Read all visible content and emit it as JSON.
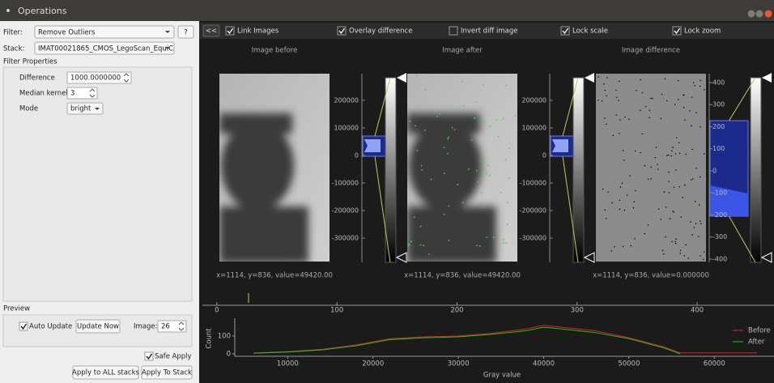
{
  "window": {
    "title": "Operations"
  },
  "filter": {
    "label": "Filter:",
    "value": "Remove Outliers",
    "help": "?"
  },
  "stack": {
    "label": "Stack:",
    "value": "IMAT00021865_CMOS_LegoScan_EquiC"
  },
  "filter_properties": {
    "title": "Filter Properties",
    "fields": [
      {
        "label": "Difference",
        "value": "1000.0000000"
      },
      {
        "label": "Median kernel",
        "value": "3"
      },
      {
        "label": "Mode",
        "value": "bright"
      }
    ]
  },
  "preview": {
    "title": "Preview",
    "auto_update": {
      "label": "Auto Update",
      "checked": true
    },
    "update_now": "Update Now",
    "image_label": "Image:",
    "image_value": "26"
  },
  "safe_apply": {
    "label": "Safe Apply",
    "checked": true
  },
  "buttons": [
    "Apply to ALL stacks",
    "Apply To Stack"
  ],
  "toolbar": {
    "collapse": "<<",
    "options": [
      {
        "label": "Link Images",
        "checked": true
      },
      {
        "label": "Overlay difference",
        "checked": true
      },
      {
        "label": "Invert diff image",
        "checked": false
      },
      {
        "label": "Lock scale",
        "checked": true
      },
      {
        "label": "Lock zoom",
        "checked": true
      }
    ]
  },
  "images": [
    {
      "title": "Image before",
      "position": "x=1114, y=836, value=49420.00",
      "scale": {
        "ylim": [
          -388000,
          282000
        ],
        "ticks": [
          200000,
          100000,
          0,
          -100000,
          -200000,
          -300000
        ]
      }
    },
    {
      "title": "Image after",
      "position": "x=1114, y=836, value=49420.00",
      "scale": {
        "ylim": [
          -388000,
          282000
        ],
        "ticks": [
          200000,
          100000,
          0,
          -100000,
          -200000,
          -300000
        ]
      }
    },
    {
      "title": "Image difference",
      "position": "x=1114, y=836, value=0.000000",
      "scale": {
        "ylim": [
          -415,
          422
        ],
        "ticks": [
          400,
          300,
          200,
          100,
          0,
          -100,
          -200,
          -300,
          -400
        ]
      }
    }
  ],
  "scale_bar": {
    "xlim": [
      -12,
      464
    ],
    "xticks": [
      0,
      100,
      200,
      300,
      400
    ]
  },
  "histogram": {
    "type": "line",
    "y_label": "Count",
    "x_label": "Gray value",
    "xlim": [
      3800,
      67000
    ],
    "ylim": [
      -14,
      200
    ],
    "xticks": [
      10000,
      20000,
      30000,
      40000,
      50000,
      60000
    ],
    "yticks": [
      0,
      100
    ],
    "x": [
      6000,
      10000,
      14000,
      18000,
      22000,
      26000,
      30000,
      34000,
      38000,
      40000,
      42000,
      46000,
      50000,
      54000,
      56000,
      60000,
      65000
    ],
    "series": [
      {
        "name": "Before",
        "color": "#e0201e",
        "values": [
          5,
          12,
          25,
          50,
          85,
          95,
          100,
          115,
          140,
          160,
          150,
          130,
          90,
          40,
          5,
          5,
          5
        ]
      },
      {
        "name": "After",
        "color": "#22c02a",
        "values": [
          3,
          10,
          22,
          45,
          80,
          90,
          95,
          110,
          130,
          150,
          140,
          120,
          85,
          35,
          0,
          null,
          null
        ]
      }
    ]
  }
}
